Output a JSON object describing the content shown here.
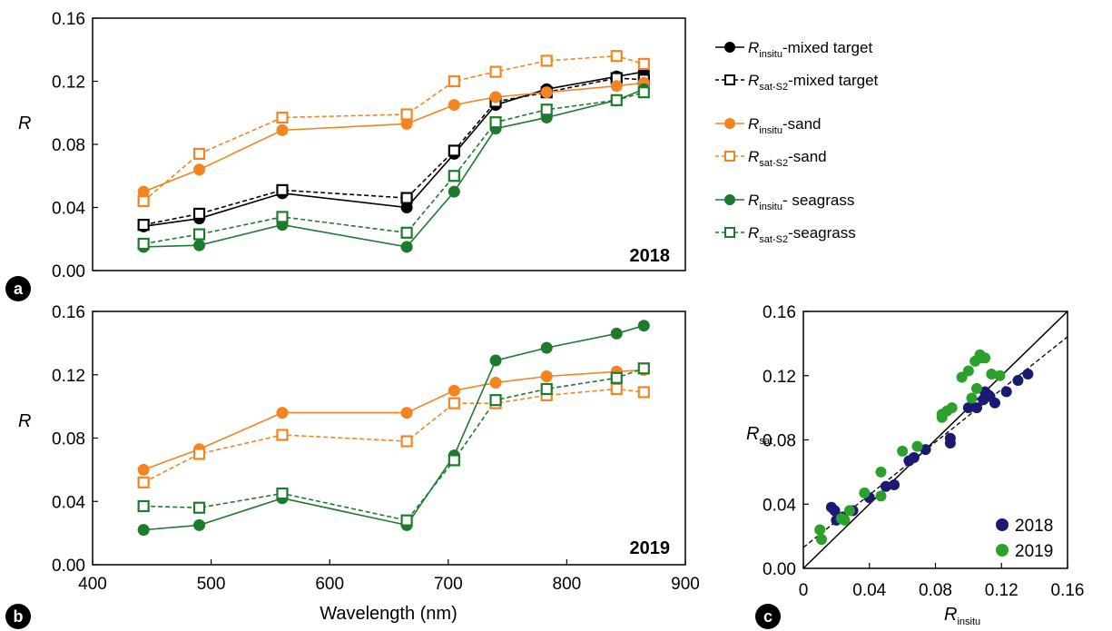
{
  "chart_data": [
    {
      "type": "line",
      "panel_label": "a",
      "year_label": "2018",
      "ylabel": "R",
      "xlabel": "",
      "xlim": [
        400,
        900
      ],
      "ylim": [
        0.0,
        0.16
      ],
      "yticks": [
        "0.00",
        "0.04",
        "0.08",
        "0.12",
        "0.16"
      ],
      "x": [
        443,
        490,
        560,
        665,
        705,
        740,
        783,
        842,
        865
      ],
      "series": [
        {
          "name_base": "R",
          "name_sub": "insitu",
          "name_suffix": "-mixed target",
          "color": "#000000",
          "dashed": false,
          "marker": "circle",
          "values": [
            0.028,
            0.033,
            0.049,
            0.04,
            0.074,
            0.105,
            0.115,
            0.123,
            0.126
          ]
        },
        {
          "name_base": "R",
          "name_sub": "sat-S2",
          "name_suffix": "-mixed target",
          "color": "#000000",
          "dashed": true,
          "marker": "square",
          "values": [
            0.029,
            0.036,
            0.051,
            0.046,
            0.076,
            0.107,
            0.113,
            0.122,
            0.121
          ]
        },
        {
          "name_base": "R",
          "name_sub": "insitu",
          "name_suffix": "-sand",
          "color": "#f28522",
          "dashed": false,
          "marker": "circle",
          "values": [
            0.05,
            0.064,
            0.089,
            0.093,
            0.105,
            0.11,
            0.113,
            0.117,
            0.119
          ]
        },
        {
          "name_base": "R",
          "name_sub": "sat-S2",
          "name_suffix": "-sand",
          "color": "#f28522",
          "dashed": true,
          "marker": "square",
          "values": [
            0.044,
            0.074,
            0.097,
            0.099,
            0.12,
            0.126,
            0.133,
            0.136,
            0.131
          ]
        },
        {
          "name_base": "R",
          "name_sub": "insitu",
          "name_suffix": "- seagrass",
          "color": "#1e7b2e",
          "dashed": false,
          "marker": "circle",
          "values": [
            0.015,
            0.016,
            0.029,
            0.015,
            0.05,
            0.09,
            0.097,
            0.108,
            0.115
          ]
        },
        {
          "name_base": "R",
          "name_sub": "sat-S2",
          "name_suffix": "-seagrass",
          "color": "#1e7b2e",
          "dashed": true,
          "marker": "square",
          "values": [
            0.017,
            0.023,
            0.034,
            0.024,
            0.06,
            0.094,
            0.102,
            0.108,
            0.113
          ]
        }
      ]
    },
    {
      "type": "line",
      "panel_label": "b",
      "year_label": "2019",
      "ylabel": "R",
      "xlabel": "Wavelength (nm)",
      "xlim": [
        400,
        900
      ],
      "ylim": [
        0.0,
        0.16
      ],
      "xticks": [
        "400",
        "500",
        "600",
        "700",
        "800",
        "900"
      ],
      "yticks": [
        "0.00",
        "0.04",
        "0.08",
        "0.12",
        "0.16"
      ],
      "x": [
        443,
        490,
        560,
        665,
        705,
        740,
        783,
        842,
        865
      ],
      "series": [
        {
          "color": "#f28522",
          "dashed": false,
          "marker": "circle",
          "values": [
            0.06,
            0.073,
            0.096,
            0.096,
            0.11,
            0.115,
            0.119,
            0.122,
            0.123
          ]
        },
        {
          "color": "#f28522",
          "dashed": true,
          "marker": "square",
          "values": [
            0.052,
            0.07,
            0.082,
            0.078,
            0.102,
            0.102,
            0.107,
            0.111,
            0.109
          ]
        },
        {
          "color": "#1e7b2e",
          "dashed": false,
          "marker": "circle",
          "values": [
            0.022,
            0.025,
            0.042,
            0.025,
            0.069,
            0.129,
            0.137,
            0.146,
            0.151
          ]
        },
        {
          "color": "#1e7b2e",
          "dashed": true,
          "marker": "square",
          "values": [
            0.037,
            0.036,
            0.045,
            0.028,
            0.066,
            0.104,
            0.111,
            0.118,
            0.124
          ]
        }
      ]
    },
    {
      "type": "scatter",
      "panel_label": "c",
      "xlabel_base": "R",
      "xlabel_sub": "insitu",
      "ylabel_base": "R",
      "ylabel_sub": "sat",
      "xlim": [
        0.0,
        0.16
      ],
      "ylim": [
        0.0,
        0.16
      ],
      "xticks": [
        "0",
        "0.04",
        "0.08",
        "0.12",
        "0.16"
      ],
      "yticks": [
        "0.00",
        "0.04",
        "0.08",
        "0.12",
        "0.16"
      ],
      "one_to_one_line": true,
      "fit_line": {
        "intercept": 0.013,
        "slope": 0.82
      },
      "legend_position": "bottom-right",
      "series": [
        {
          "name": "2018",
          "color": "#1a1a73",
          "points": [
            [
              0.017,
              0.038
            ],
            [
              0.019,
              0.036
            ],
            [
              0.02,
              0.03
            ],
            [
              0.024,
              0.032
            ],
            [
              0.03,
              0.036
            ],
            [
              0.04,
              0.044
            ],
            [
              0.05,
              0.051
            ],
            [
              0.055,
              0.052
            ],
            [
              0.064,
              0.067
            ],
            [
              0.067,
              0.069
            ],
            [
              0.074,
              0.074
            ],
            [
              0.089,
              0.078
            ],
            [
              0.089,
              0.081
            ],
            [
              0.1,
              0.1
            ],
            [
              0.105,
              0.1
            ],
            [
              0.109,
              0.105
            ],
            [
              0.11,
              0.11
            ],
            [
              0.112,
              0.108
            ],
            [
              0.113,
              0.107
            ],
            [
              0.116,
              0.103
            ],
            [
              0.123,
              0.11
            ],
            [
              0.13,
              0.117
            ],
            [
              0.136,
              0.121
            ]
          ]
        },
        {
          "name": "2019",
          "color": "#2ca02c",
          "points": [
            [
              0.01,
              0.024
            ],
            [
              0.011,
              0.018
            ],
            [
              0.023,
              0.031
            ],
            [
              0.025,
              0.03
            ],
            [
              0.028,
              0.036
            ],
            [
              0.037,
              0.047
            ],
            [
              0.047,
              0.06
            ],
            [
              0.047,
              0.045
            ],
            [
              0.06,
              0.073
            ],
            [
              0.069,
              0.076
            ],
            [
              0.084,
              0.094
            ],
            [
              0.084,
              0.096
            ],
            [
              0.087,
              0.098
            ],
            [
              0.09,
              0.1
            ],
            [
              0.096,
              0.119
            ],
            [
              0.1,
              0.123
            ],
            [
              0.102,
              0.106
            ],
            [
              0.104,
              0.129
            ],
            [
              0.105,
              0.112
            ],
            [
              0.107,
              0.133
            ],
            [
              0.108,
              0.131
            ],
            [
              0.11,
              0.131
            ],
            [
              0.114,
              0.121
            ],
            [
              0.119,
              0.12
            ]
          ]
        }
      ]
    }
  ]
}
